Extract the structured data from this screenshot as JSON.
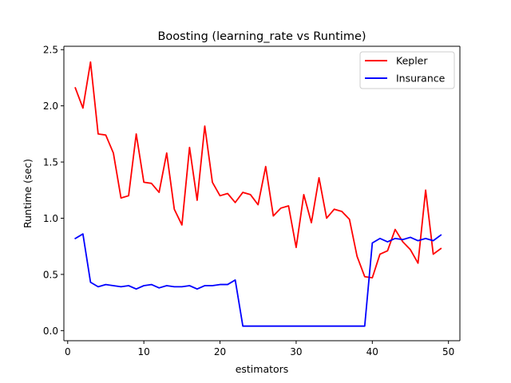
{
  "chart_data": {
    "type": "line",
    "title": "Boosting (learning_rate vs Runtime)",
    "xlabel": "estimators",
    "ylabel": "Runtime (sec)",
    "xlim": [
      -0.5,
      51.5
    ],
    "ylim": [
      -0.09,
      2.53
    ],
    "xticks": [
      0,
      10,
      20,
      30,
      40,
      50
    ],
    "yticks": [
      0.0,
      0.5,
      1.0,
      1.5,
      2.0,
      2.5
    ],
    "x": [
      1,
      2,
      3,
      4,
      5,
      6,
      7,
      8,
      9,
      10,
      11,
      12,
      13,
      14,
      15,
      16,
      17,
      18,
      19,
      20,
      21,
      22,
      23,
      24,
      25,
      26,
      27,
      28,
      29,
      30,
      31,
      32,
      33,
      34,
      35,
      36,
      37,
      38,
      39,
      40,
      41,
      42,
      43,
      44,
      45,
      46,
      47,
      48,
      49
    ],
    "series": [
      {
        "name": "Kepler",
        "color": "#ff0000",
        "values": [
          2.16,
          1.98,
          2.39,
          1.75,
          1.74,
          1.58,
          1.18,
          1.2,
          1.75,
          1.32,
          1.31,
          1.23,
          1.58,
          1.08,
          0.94,
          1.63,
          1.16,
          1.82,
          1.32,
          1.2,
          1.22,
          1.14,
          1.23,
          1.21,
          1.12,
          1.46,
          1.02,
          1.09,
          1.11,
          0.74,
          1.21,
          0.96,
          1.36,
          1.0,
          1.08,
          1.06,
          0.99,
          0.66,
          0.48,
          0.47,
          0.68,
          0.71,
          0.9,
          0.79,
          0.72,
          0.6,
          1.25,
          0.68,
          0.73
        ]
      },
      {
        "name": "Insurance",
        "color": "#0000ff",
        "values": [
          0.82,
          0.86,
          0.43,
          0.39,
          0.41,
          0.4,
          0.39,
          0.4,
          0.37,
          0.4,
          0.41,
          0.38,
          0.4,
          0.39,
          0.39,
          0.4,
          0.37,
          0.4,
          0.4,
          0.41,
          0.41,
          0.45,
          0.04,
          0.04,
          0.04,
          0.04,
          0.04,
          0.04,
          0.04,
          0.04,
          0.04,
          0.04,
          0.04,
          0.04,
          0.04,
          0.04,
          0.04,
          0.04,
          0.04,
          0.78,
          0.82,
          0.79,
          0.82,
          0.81,
          0.83,
          0.8,
          0.82,
          0.8,
          0.85
        ]
      }
    ],
    "legend": {
      "position": "upper right"
    },
    "grid": false
  }
}
